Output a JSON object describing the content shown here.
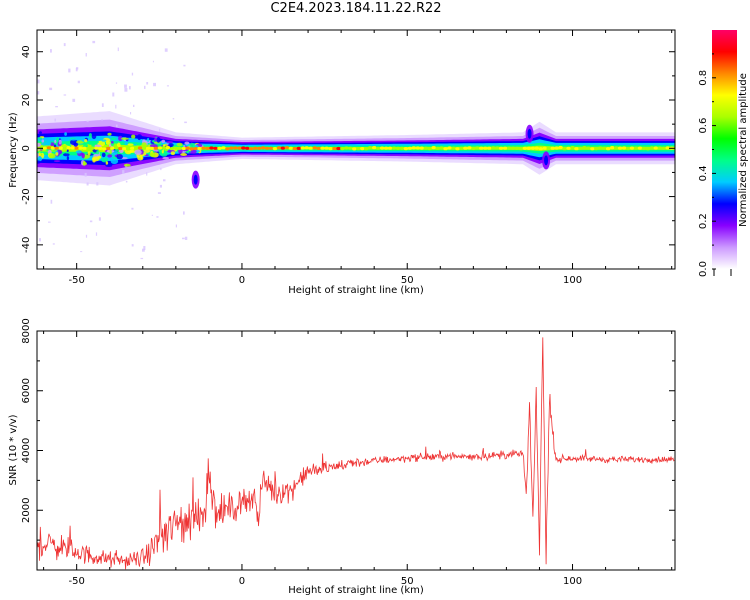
{
  "title": "C2E4.2023.184.11.22.R22",
  "chart_data": [
    {
      "type": "heatmap",
      "xlabel": "Height of straight line (km)",
      "ylabel": "Frequency (Hz)",
      "xlim": [
        -62,
        131
      ],
      "ylim": [
        -50,
        49
      ],
      "xticks": [
        -50,
        0,
        50,
        100
      ],
      "yticks": [
        -40,
        -20,
        0,
        20,
        40
      ],
      "band_center_hz": 0,
      "band": [
        {
          "x": -62,
          "halfwidth_hz": 6
        },
        {
          "x": -40,
          "halfwidth_hz": 7
        },
        {
          "x": -30,
          "halfwidth_hz": 5
        },
        {
          "x": -20,
          "halfwidth_hz": 3
        },
        {
          "x": -10,
          "halfwidth_hz": 2.5
        },
        {
          "x": 0,
          "halfwidth_hz": 2
        },
        {
          "x": 50,
          "halfwidth_hz": 2.5
        },
        {
          "x": 85,
          "halfwidth_hz": 3
        },
        {
          "x": 90,
          "halfwidth_hz": 5
        },
        {
          "x": 95,
          "halfwidth_hz": 3
        },
        {
          "x": 131,
          "halfwidth_hz": 3
        }
      ],
      "peaks": [
        {
          "x": -14,
          "y": -13
        },
        {
          "x": 87,
          "y": 6
        },
        {
          "x": 92,
          "y": -5
        }
      ],
      "colorbar": {
        "label": "Normalized spectral amplitude",
        "range": [
          0,
          1
        ],
        "ticks": [
          0.0,
          0.2,
          0.4,
          0.6,
          0.8
        ],
        "tick_labels": [
          "0.0",
          "0.2",
          "0.4",
          "0.6",
          "0.8"
        ],
        "colors": [
          "#ffffff",
          "#cc99ff",
          "#8800ff",
          "#0000ff",
          "#00ccff",
          "#00ff88",
          "#00ff00",
          "#aaff00",
          "#ffff00",
          "#ff8800",
          "#ff0000",
          "#ff0066"
        ]
      }
    },
    {
      "type": "line",
      "xlabel": "Height of straight line (km)",
      "ylabel": "SNR (10 * v/v)",
      "xlim": [
        -62,
        131
      ],
      "ylim": [
        0,
        8000
      ],
      "xticks": [
        -50,
        0,
        50,
        100
      ],
      "yticks": [
        2000,
        4000,
        6000,
        8000
      ],
      "series": [
        {
          "color": "#ee3333",
          "x": [
            -62,
            -55,
            -50,
            -45,
            -40,
            -35,
            -30,
            -27,
            -25,
            -22,
            -20,
            -18,
            -15,
            -13,
            -11,
            -10,
            -8,
            -5,
            -2,
            0,
            2,
            4,
            5,
            6,
            8,
            10,
            15,
            20,
            25,
            30,
            35,
            40,
            45,
            50,
            60,
            70,
            80,
            85,
            86,
            87,
            88,
            89,
            90,
            91,
            92,
            93,
            95,
            100,
            110,
            120,
            131
          ],
          "y": [
            900,
            800,
            600,
            450,
            350,
            300,
            400,
            700,
            1100,
            1300,
            1500,
            1600,
            1700,
            1800,
            2200,
            3500,
            1900,
            2000,
            2100,
            2300,
            2400,
            2500,
            1400,
            3000,
            2800,
            2600,
            2700,
            3300,
            3400,
            3500,
            3600,
            3650,
            3700,
            3750,
            3800,
            3800,
            3850,
            3900,
            2500,
            5500,
            1500,
            6000,
            700,
            7800,
            500,
            5500,
            3700,
            3750,
            3700,
            3700,
            3700
          ],
          "noise": [
            600,
            500,
            400,
            350,
            300,
            250,
            350,
            500,
            700,
            800,
            900,
            900,
            900,
            900,
            900,
            900,
            700,
            600,
            500,
            500,
            500,
            400,
            600,
            500,
            500,
            500,
            400,
            300,
            250,
            200,
            200,
            150,
            150,
            150,
            150,
            150,
            150,
            150,
            300,
            300,
            300,
            300,
            300,
            300,
            300,
            300,
            150,
            120,
            120,
            120,
            120
          ]
        }
      ]
    }
  ]
}
